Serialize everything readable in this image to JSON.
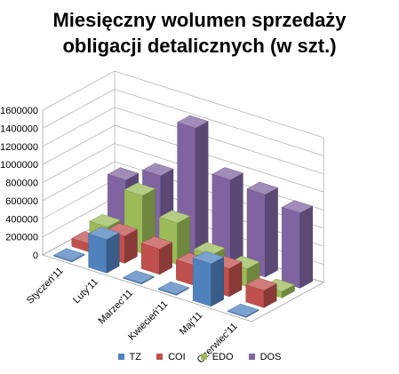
{
  "chart_data": {
    "type": "bar",
    "style": "3d-clustered-column",
    "title": "Miesięczny wolumen sprzedaży obligacji detalicznych (w szt.)",
    "title_lines": [
      "Miesięczny wolumen sprzedaży",
      "obligacji detalicznych (w szt.)"
    ],
    "categories": [
      "Styczeń'11",
      "Luty'11",
      "Marzec'11",
      "Kwiecień'11",
      "Maj'11",
      "Czerwiec'11"
    ],
    "y_ticks": [
      "1600000",
      "1400000",
      "1200000",
      "1000000",
      "800000",
      "600000",
      "400000",
      "200000",
      "0"
    ],
    "ylim": [
      0,
      1600000
    ],
    "grid": true,
    "legend_position": "bottom",
    "series": [
      {
        "name": "TZ",
        "color": "#4f81bd",
        "values": [
          10000,
          370000,
          10000,
          10000,
          470000,
          10000
        ]
      },
      {
        "name": "COI",
        "color": "#c0504d",
        "values": [
          90000,
          300000,
          280000,
          220000,
          310000,
          190000
        ]
      },
      {
        "name": "EDO",
        "color": "#9bbb59",
        "values": [
          170000,
          640000,
          460000,
          230000,
          200000,
          70000
        ]
      },
      {
        "name": "DOS",
        "color": "#8064a2",
        "values": [
          580000,
          750000,
          1400000,
          950000,
          910000,
          830000
        ]
      }
    ]
  }
}
